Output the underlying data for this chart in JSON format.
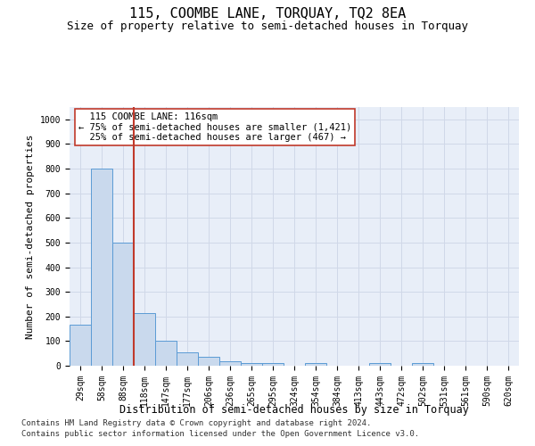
{
  "title": "115, COOMBE LANE, TORQUAY, TQ2 8EA",
  "subtitle": "Size of property relative to semi-detached houses in Torquay",
  "xlabel": "Distribution of semi-detached houses by size in Torquay",
  "ylabel": "Number of semi-detached properties",
  "categories": [
    "29sqm",
    "58sqm",
    "88sqm",
    "118sqm",
    "147sqm",
    "177sqm",
    "206sqm",
    "236sqm",
    "265sqm",
    "295sqm",
    "324sqm",
    "354sqm",
    "384sqm",
    "413sqm",
    "443sqm",
    "472sqm",
    "502sqm",
    "531sqm",
    "561sqm",
    "590sqm",
    "620sqm"
  ],
  "values": [
    165,
    800,
    500,
    215,
    100,
    55,
    37,
    18,
    10,
    10,
    0,
    10,
    0,
    0,
    10,
    0,
    10,
    0,
    0,
    0,
    0
  ],
  "bar_color": "#c9d9ed",
  "bar_edge_color": "#5b9bd5",
  "vline_color": "#c0392b",
  "property_label": "115 COOMBE LANE: 116sqm",
  "smaller_text": "← 75% of semi-detached houses are smaller (1,421)",
  "larger_text": "25% of semi-detached houses are larger (467) →",
  "annotation_box_color": "#ffffff",
  "annotation_box_edge": "#c0392b",
  "ylim": [
    0,
    1050
  ],
  "footnote1": "Contains HM Land Registry data © Crown copyright and database right 2024.",
  "footnote2": "Contains public sector information licensed under the Open Government Licence v3.0.",
  "grid_color": "#d0d8e8",
  "bg_color": "#e8eef8",
  "title_fontsize": 11,
  "subtitle_fontsize": 9,
  "xlabel_fontsize": 8.5,
  "ylabel_fontsize": 8,
  "tick_fontsize": 7,
  "annotation_fontsize": 7.5,
  "footnote_fontsize": 6.5
}
